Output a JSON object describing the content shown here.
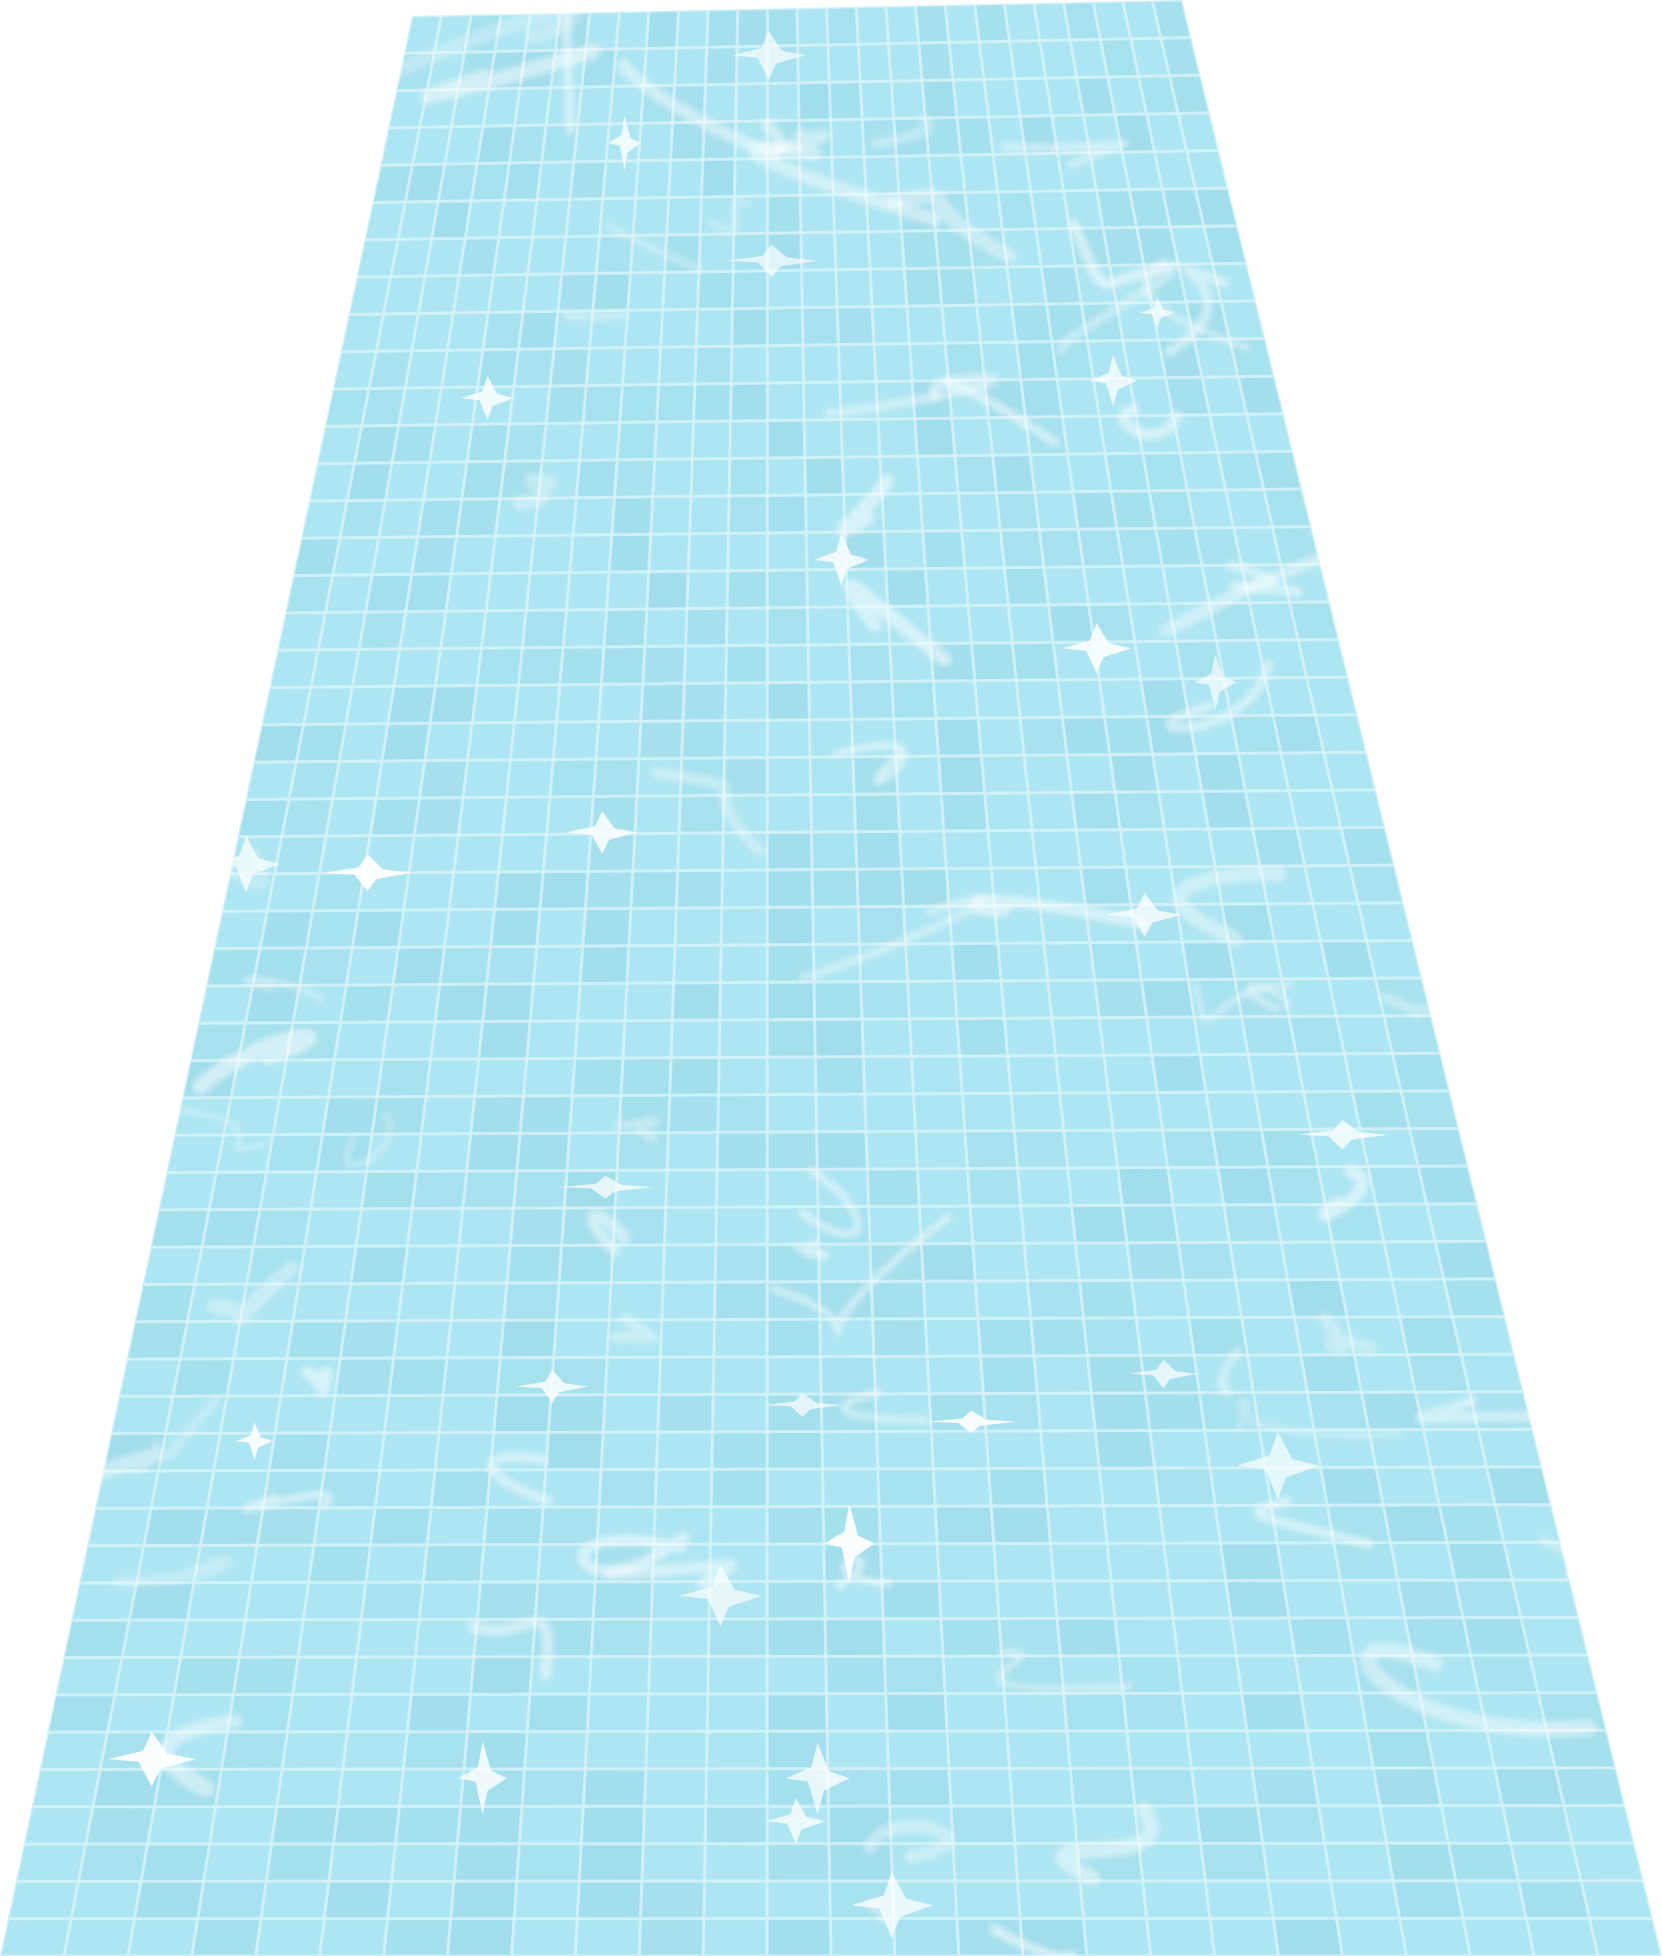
{
  "scene": {
    "subject": "pool-floor-illustration",
    "colors": {
      "background": "#ffffff",
      "water": "#ade6f2",
      "tile_dark": "#9fdbe9",
      "grout": "#d6f3fa",
      "caustic": "#ffffff"
    }
  }
}
